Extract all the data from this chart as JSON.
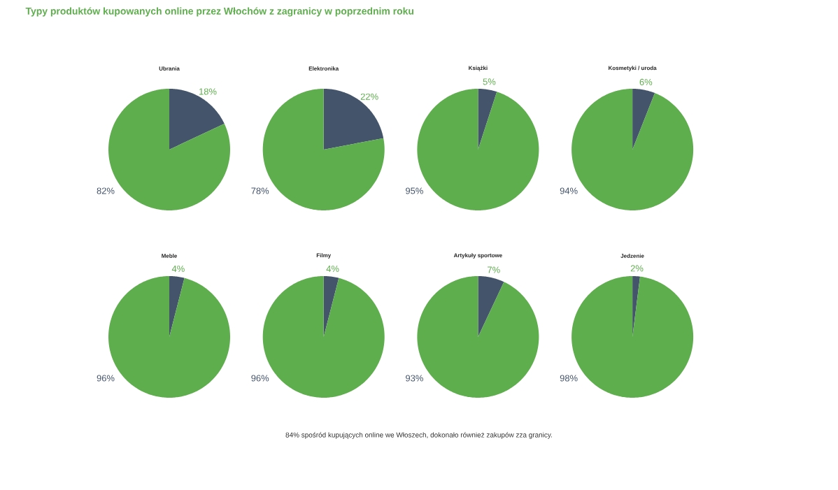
{
  "chart_data": [
    {
      "type": "pie",
      "title": "Ubrania",
      "categories": [
        null,
        null
      ],
      "values": [
        18,
        82
      ],
      "colors": [
        "#44546a",
        "#5fae4e"
      ],
      "value_labels": [
        "18%",
        "82%"
      ]
    },
    {
      "type": "pie",
      "title": "Elektronika",
      "categories": [
        null,
        null
      ],
      "values": [
        22,
        78
      ],
      "colors": [
        "#44546a",
        "#5fae4e"
      ],
      "value_labels": [
        "22%",
        "78%"
      ]
    },
    {
      "type": "pie",
      "title": "Książki",
      "categories": [
        null,
        null
      ],
      "values": [
        5,
        95
      ],
      "colors": [
        "#44546a",
        "#5fae4e"
      ],
      "value_labels": [
        "5%",
        "95%"
      ]
    },
    {
      "type": "pie",
      "title": "Kosmetyki / uroda",
      "categories": [
        null,
        null
      ],
      "values": [
        6,
        94
      ],
      "colors": [
        "#44546a",
        "#5fae4e"
      ],
      "value_labels": [
        "6%",
        "94%"
      ]
    },
    {
      "type": "pie",
      "title": "Meble",
      "categories": [
        null,
        null
      ],
      "values": [
        4,
        96
      ],
      "colors": [
        "#44546a",
        "#5fae4e"
      ],
      "value_labels": [
        "4%",
        "96%"
      ]
    },
    {
      "type": "pie",
      "title": "Filmy",
      "categories": [
        null,
        null
      ],
      "values": [
        4,
        96
      ],
      "colors": [
        "#44546a",
        "#5fae4e"
      ],
      "value_labels": [
        "4%",
        "96%"
      ]
    },
    {
      "type": "pie",
      "title": "Artykuły sportowe",
      "categories": [
        null,
        null
      ],
      "values": [
        7,
        93
      ],
      "colors": [
        "#44546a",
        "#5fae4e"
      ],
      "value_labels": [
        "7%",
        "93%"
      ]
    },
    {
      "type": "pie",
      "title": "Jedzenie",
      "categories": [
        null,
        null
      ],
      "values": [
        2,
        98
      ],
      "colors": [
        "#44546a",
        "#5fae4e"
      ],
      "value_labels": [
        "2%",
        "98%"
      ]
    },
    {
      "type": "other",
      "title": "Typy produktów kupowanych online przez Włochów z zagranicy w poprzednim roku",
      "annotations": [
        "84% spośród kupujących online we Włoszech, dokonało również zakupów zza granicy."
      ]
    }
  ]
}
